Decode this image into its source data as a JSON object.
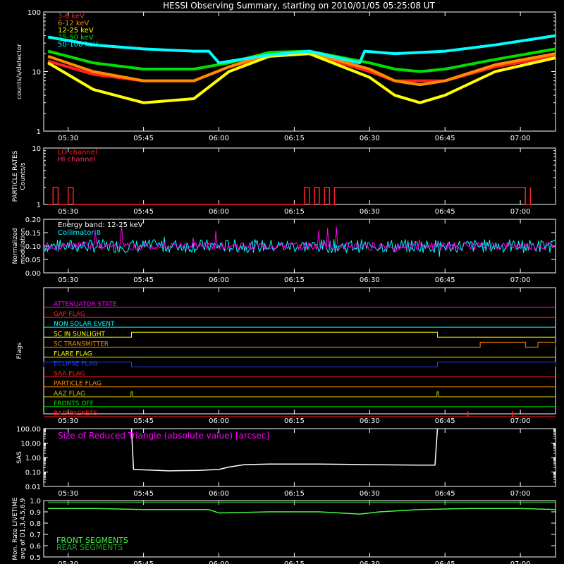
{
  "title": "HESSI Observing Summary, starting on 2010/01/05 05:25:08 UT",
  "time_ticks": [
    "05:30",
    "05:45",
    "06:00",
    "06:15",
    "06:30",
    "06:45",
    "07:00"
  ],
  "time_tick_minutes": [
    30,
    45,
    60,
    75,
    90,
    105,
    120
  ],
  "time_range_minutes": [
    25.13,
    127.0
  ],
  "chart_data": [
    {
      "type": "line",
      "id": "count-rates",
      "ylabel": "counts/s/detector",
      "yscale": "log",
      "ylim": [
        1,
        100
      ],
      "yticks": [
        "1",
        "10",
        "100"
      ],
      "yticks_values": [
        1,
        10,
        100
      ],
      "legend_placement": "top-left",
      "series": [
        {
          "name": "3-6 keV",
          "color": "#ff2020",
          "x": [
            26,
            35,
            45,
            55,
            62,
            70,
            78,
            90,
            95,
            100,
            105,
            115,
            127
          ],
          "values": [
            15,
            9,
            7,
            7,
            12,
            18,
            20,
            10,
            7,
            7,
            7,
            12,
            18
          ]
        },
        {
          "name": "6-12 keV",
          "color": "#ff8c00",
          "x": [
            26,
            35,
            45,
            55,
            62,
            70,
            78,
            90,
            95,
            100,
            105,
            115,
            127
          ],
          "values": [
            18,
            10,
            7,
            7,
            12,
            20,
            21,
            11,
            7,
            6,
            7,
            13,
            20
          ]
        },
        {
          "name": "12-25 keV",
          "color": "#ffff00",
          "x": [
            26,
            35,
            45,
            55,
            62,
            70,
            78,
            90,
            95,
            100,
            105,
            115,
            127
          ],
          "values": [
            14,
            5,
            3,
            3.5,
            10,
            18,
            20,
            8,
            4,
            3,
            4,
            10,
            17
          ]
        },
        {
          "name": "25-50 keV",
          "color": "#00e000",
          "x": [
            26,
            35,
            45,
            55,
            62,
            70,
            78,
            90,
            95,
            100,
            105,
            115,
            127
          ],
          "values": [
            22,
            14,
            11,
            11,
            14,
            21,
            22,
            14,
            11,
            10,
            11,
            16,
            24
          ]
        },
        {
          "name": "50-100 keV",
          "color": "#00ffff",
          "x": [
            26,
            35,
            45,
            55,
            58,
            60,
            70,
            78,
            88,
            89,
            95,
            105,
            115,
            127
          ],
          "values": [
            38,
            28,
            24,
            22,
            22,
            14,
            19,
            22,
            14,
            22,
            20,
            22,
            28,
            40
          ]
        }
      ]
    },
    {
      "type": "line",
      "id": "particle-rates",
      "ylabel": "PARTICLE RATES",
      "ylabel2": "Counts/s",
      "yscale": "log",
      "ylim": [
        1,
        10
      ],
      "yticks": [
        "1",
        "10"
      ],
      "yticks_values": [
        1,
        10
      ],
      "series": [
        {
          "name": "LO channel",
          "color": "#ff2020",
          "x": [
            26,
            27,
            28,
            29,
            30,
            31,
            76,
            77,
            78,
            79,
            80,
            81,
            82,
            83,
            121,
            122
          ],
          "values": [
            1,
            2,
            1,
            1,
            2,
            1,
            1,
            2,
            1,
            2,
            1,
            2,
            1,
            2,
            1,
            2
          ]
        },
        {
          "name": "HI channel",
          "color": "#ff3060",
          "x": [],
          "values": []
        }
      ]
    },
    {
      "type": "line",
      "id": "modulation",
      "ylabel": "Normalized",
      "ylabel2": "modulation",
      "ylim": [
        0,
        0.2
      ],
      "yticks": [
        "0.00",
        "0.05",
        "0.10",
        "0.15",
        "0.20"
      ],
      "yticks_values": [
        0,
        0.05,
        0.1,
        0.15,
        0.2
      ],
      "annotation": "Energy band: 12-25 keV",
      "series": [
        {
          "name": "Collimator 8",
          "color": "#00ffff",
          "x": [
            26,
            127
          ],
          "values": [
            0.1,
            0.1
          ]
        },
        {
          "name": "",
          "color": "#ff00ff",
          "x": [
            26,
            127
          ],
          "values": [
            0.1,
            0.1
          ]
        }
      ]
    },
    {
      "type": "line",
      "id": "flags",
      "ylabel": "Flags",
      "flags": [
        {
          "name": "ATTENUATOR STATE",
          "color": "#ff00ff",
          "on": []
        },
        {
          "name": "GAP FLAG",
          "color": "#ff2020",
          "on": []
        },
        {
          "name": "NON SOLAR EVENT",
          "color": "#00ffff",
          "on": []
        },
        {
          "name": "SC IN SUNLIGHT",
          "color": "#ffff00",
          "on": [
            [
              42.6,
              103.5
            ]
          ]
        },
        {
          "name": "SC TRANSMITTER",
          "color": "#ff8c00",
          "on": [
            [
              112,
              121
            ],
            [
              123.5,
              127
            ]
          ]
        },
        {
          "name": "FLARE FLAG",
          "color": "#ffff00",
          "on": []
        },
        {
          "name": "ECLIPSE FLAG",
          "color": "#2040ff",
          "on": [
            [
              25.13,
              42.6
            ],
            [
              103.5,
              127
            ]
          ]
        },
        {
          "name": "SAA FLAG",
          "color": "#ff2020",
          "on": []
        },
        {
          "name": "PARTICLE FLAG",
          "color": "#ff8c00",
          "on": []
        },
        {
          "name": "AAZ FLAG",
          "color": "#c8c800",
          "on": [
            [
              42.5,
              42.8
            ],
            [
              103.4,
              103.7
            ]
          ]
        },
        {
          "name": "FRONTS OFF",
          "color": "#00e000",
          "on": []
        },
        {
          "name": "BAD PACKETS",
          "color": "#ff2020",
          "on": [
            [
              109.5,
              109.6
            ],
            [
              118.4,
              118.5
            ]
          ]
        }
      ]
    },
    {
      "type": "line",
      "id": "sas",
      "ylabel": "SAS",
      "yscale": "log",
      "ylim": [
        0.01,
        100
      ],
      "yticks": [
        "0.01",
        "0.10",
        "1.00",
        "10.00",
        "100.00"
      ],
      "yticks_values": [
        0.01,
        0.1,
        1,
        10,
        100
      ],
      "annotation": "Size of Reduced Triangle (absolute value) [arcsec]",
      "series": [
        {
          "name": "",
          "color": "#ffffff",
          "x": [
            42.6,
            43,
            50,
            56,
            60,
            62,
            65,
            70,
            80,
            90,
            100,
            103,
            103.5
          ],
          "values": [
            100,
            0.15,
            0.12,
            0.13,
            0.15,
            0.22,
            0.32,
            0.35,
            0.35,
            0.32,
            0.3,
            0.3,
            100
          ]
        }
      ]
    },
    {
      "type": "line",
      "id": "livetime",
      "ylabel": "Mon. Rate LIVETIME",
      "ylabel2": "avg of D1,3,4,5,6,9",
      "ylim": [
        0.5,
        1.0
      ],
      "yticks": [
        "0.5",
        "0.6",
        "0.7",
        "0.8",
        "0.9",
        "1.0"
      ],
      "yticks_values": [
        0.5,
        0.6,
        0.7,
        0.8,
        0.9,
        1.0
      ],
      "legend_placement": "bottom-left",
      "series": [
        {
          "name": "FRONT SEGMENTS",
          "color": "#40ff40",
          "x": [
            26,
            35,
            45,
            58,
            60,
            70,
            80,
            88,
            92,
            100,
            110,
            120,
            127
          ],
          "values": [
            0.93,
            0.93,
            0.92,
            0.92,
            0.89,
            0.9,
            0.9,
            0.88,
            0.9,
            0.92,
            0.93,
            0.93,
            0.92
          ]
        },
        {
          "name": "REAR SEGMENTS",
          "color": "#20a020",
          "x": [
            26,
            127
          ],
          "values": [
            0.985,
            0.985
          ]
        }
      ]
    }
  ]
}
